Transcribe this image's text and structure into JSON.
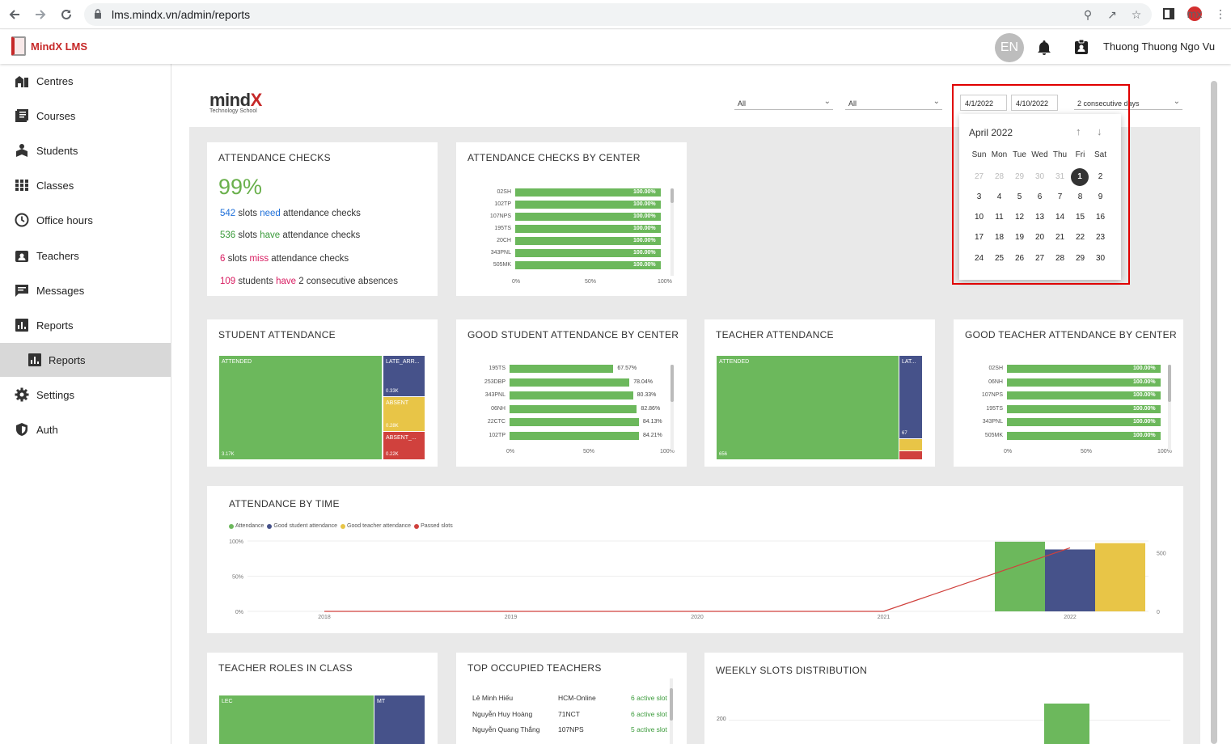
{
  "browser": {
    "url": "lms.mindx.vn/admin/reports"
  },
  "app": {
    "name": "MindX LMS",
    "lang": "EN",
    "user_name": "Thuong Thuong Ngo Vu"
  },
  "sidebar": {
    "items": [
      {
        "label": "Centres",
        "icon": "centres-icon"
      },
      {
        "label": "Courses",
        "icon": "courses-icon"
      },
      {
        "label": "Students",
        "icon": "students-icon"
      },
      {
        "label": "Classes",
        "icon": "classes-icon"
      },
      {
        "label": "Office hours",
        "icon": "clock-icon"
      },
      {
        "label": "Teachers",
        "icon": "teacher-badge-icon"
      },
      {
        "label": "Messages",
        "icon": "message-icon"
      },
      {
        "label": "Reports",
        "icon": "reports-icon"
      },
      {
        "label": "Reports",
        "icon": "reports-icon"
      },
      {
        "label": "Settings",
        "icon": "gear-icon"
      },
      {
        "label": "Auth",
        "icon": "shield-icon"
      }
    ]
  },
  "report": {
    "logo_word": "mind",
    "logo_x": "X",
    "logo_sub": "Technology School",
    "filter1": "All",
    "filter2": "All",
    "date_from": "4/1/2022",
    "date_to": "4/10/2022",
    "consecutive": "2 consecutive days"
  },
  "calendar": {
    "month": "April 2022",
    "dow": [
      "Sun",
      "Mon",
      "Tue",
      "Wed",
      "Thu",
      "Fri",
      "Sat"
    ],
    "weeks": [
      [
        "27",
        "28",
        "29",
        "30",
        "31",
        "1",
        "2"
      ],
      [
        "3",
        "4",
        "5",
        "6",
        "7",
        "8",
        "9"
      ],
      [
        "10",
        "11",
        "12",
        "13",
        "14",
        "15",
        "16"
      ],
      [
        "17",
        "18",
        "19",
        "20",
        "21",
        "22",
        "23"
      ],
      [
        "24",
        "25",
        "26",
        "27",
        "28",
        "29",
        "30"
      ]
    ],
    "selected": "1"
  },
  "attendance_checks": {
    "title": "ATTENDANCE CHECKS",
    "pct": "99%",
    "line1": {
      "n": "542",
      "a": " slots ",
      "k": "need",
      "b": " attendance checks"
    },
    "line2": {
      "n": "536",
      "a": " slots ",
      "k": "have",
      "b": " attendance checks"
    },
    "line3": {
      "n": "6",
      "a": " slots ",
      "k": "miss",
      "b": " attendance checks"
    },
    "line4": {
      "n": "109",
      "a": " students ",
      "k": "have",
      "b": " 2 consecutive absences"
    }
  },
  "checks_by_center": {
    "title": "ATTENDANCE CHECKS BY CENTER",
    "axis": [
      "0%",
      "50%",
      "100%"
    ],
    "rows": [
      {
        "label": "02SH",
        "value": 100,
        "text": "100.00%"
      },
      {
        "label": "102TP",
        "value": 100,
        "text": "100.00%"
      },
      {
        "label": "107NPS",
        "value": 100,
        "text": "100.00%"
      },
      {
        "label": "195TS",
        "value": 100,
        "text": "100.00%"
      },
      {
        "label": "20CH",
        "value": 100,
        "text": "100.00%"
      },
      {
        "label": "343PNL",
        "value": 100,
        "text": "100.00%"
      },
      {
        "label": "505MK",
        "value": 100,
        "text": "100.00%"
      }
    ]
  },
  "student_attendance": {
    "title": "STUDENT ATTENDANCE",
    "attended": "ATTENDED",
    "attended_val": "3.17K",
    "late": "LATE_ARR...",
    "late_val": "0.33K",
    "absent": "ABSENT",
    "absent_val": "0.28K",
    "absent2": "ABSENT_...",
    "absent2_val": "0.22K"
  },
  "good_student_by_center": {
    "title": "GOOD STUDENT ATTENDANCE BY CENTER",
    "axis": [
      "0%",
      "50%",
      "100%"
    ],
    "rows": [
      {
        "label": "195TS",
        "value": 67.57,
        "text": "67.57%"
      },
      {
        "label": "253DBP",
        "value": 78.04,
        "text": "78.04%"
      },
      {
        "label": "343PNL",
        "value": 80.33,
        "text": "80.33%"
      },
      {
        "label": "06NH",
        "value": 82.86,
        "text": "82.86%"
      },
      {
        "label": "22CTC",
        "value": 84.13,
        "text": "84.13%"
      },
      {
        "label": "102TP",
        "value": 84.21,
        "text": "84.21%"
      }
    ]
  },
  "teacher_attendance": {
    "title": "TEACHER ATTENDANCE",
    "attended": "ATTENDED",
    "attended_val": "656",
    "late": "LAT...",
    "late_val": "67"
  },
  "good_teacher_by_center": {
    "title": "GOOD TEACHER ATTENDANCE BY CENTER",
    "axis": [
      "0%",
      "50%",
      "100%"
    ],
    "rows": [
      {
        "label": "02SH",
        "value": 100,
        "text": "100.00%"
      },
      {
        "label": "06NH",
        "value": 100,
        "text": "100.00%"
      },
      {
        "label": "107NPS",
        "value": 100,
        "text": "100.00%"
      },
      {
        "label": "195TS",
        "value": 100,
        "text": "100.00%"
      },
      {
        "label": "343PNL",
        "value": 100,
        "text": "100.00%"
      },
      {
        "label": "505MK",
        "value": 100,
        "text": "100.00%"
      }
    ]
  },
  "attendance_by_time": {
    "title": "ATTENDANCE BY TIME",
    "legend": [
      {
        "name": "Attendance",
        "color": "#6cb85c"
      },
      {
        "name": "Good student attendance",
        "color": "#46528a"
      },
      {
        "name": "Good teacher attendance",
        "color": "#e8c547"
      },
      {
        "name": "Passed slots",
        "color": "#d0413d"
      }
    ],
    "y_left": [
      "100%",
      "50%",
      "0%"
    ],
    "y_right": [
      "500",
      "0"
    ],
    "x": [
      "2018",
      "2019",
      "2020",
      "2021",
      "2022"
    ]
  },
  "chart_data": {
    "type": "bar",
    "title": "ATTENDANCE BY TIME",
    "categories": [
      "2018",
      "2019",
      "2020",
      "2021",
      "2022"
    ],
    "series": [
      {
        "name": "Attendance",
        "values": [
          0,
          0,
          0,
          0,
          99
        ]
      },
      {
        "name": "Good student attendance",
        "values": [
          0,
          0,
          0,
          0,
          88
        ]
      },
      {
        "name": "Good teacher attendance",
        "values": [
          0,
          0,
          0,
          0,
          97
        ]
      },
      {
        "name": "Passed slots",
        "values": [
          0,
          0,
          0,
          0,
          542
        ]
      }
    ],
    "ylim": [
      0,
      100
    ],
    "y2lim": [
      0,
      600
    ]
  },
  "teacher_roles": {
    "title": "TEACHER ROLES IN CLASS",
    "lec": "LEC",
    "mt": "MT"
  },
  "top_teachers": {
    "title": "TOP OCCUPIED TEACHERS",
    "rows": [
      {
        "name": "Lê Minh Hiếu",
        "center": "HCM-Online",
        "slots": "6 active slot"
      },
      {
        "name": "Nguyễn Huy Hoàng",
        "center": "71NCT",
        "slots": "6 active slot"
      },
      {
        "name": "Nguyễn Quang Thắng",
        "center": "107NPS",
        "slots": "5 active slot"
      }
    ]
  },
  "weekly_slots": {
    "title": "WEEKLY SLOTS DISTRIBUTION",
    "y_tick": "200"
  }
}
